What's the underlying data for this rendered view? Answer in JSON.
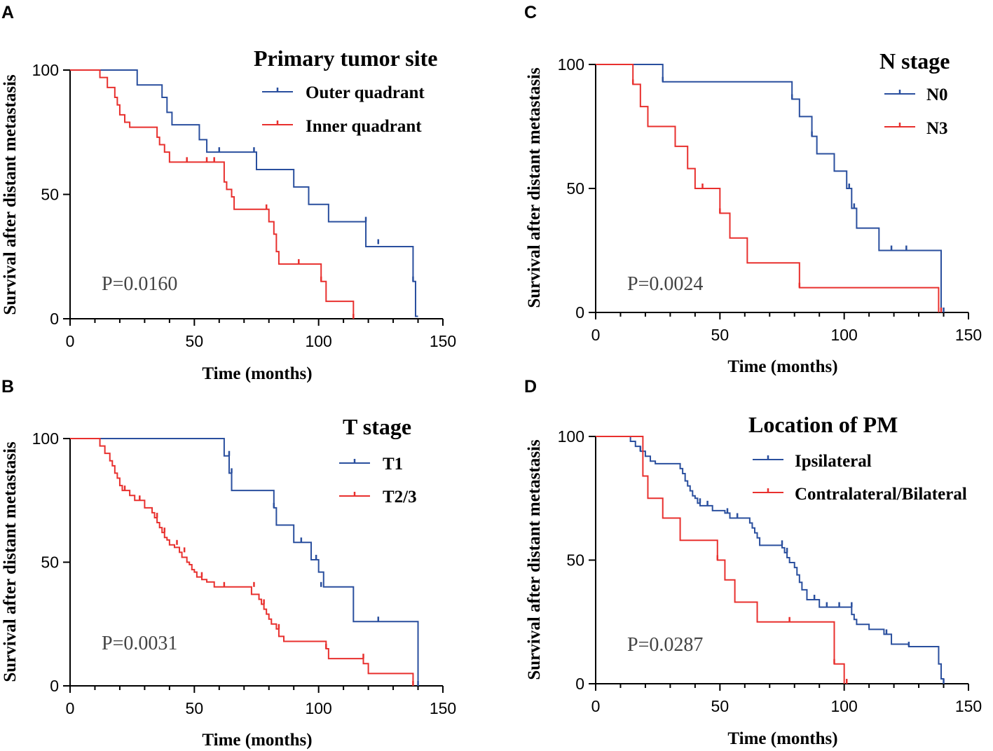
{
  "figure": {
    "x_axis_label": "Time (months)",
    "y_axis_label": "Survival after distant metastasis",
    "colors": {
      "blue": "#2a4f9e",
      "red": "#e8302e",
      "axis": "#000000"
    }
  },
  "chart_data": [
    {
      "panel_label": "A",
      "type": "line",
      "step": true,
      "legend_title": "Primary tumor site",
      "p_value": "P=0.0160",
      "xlabel": "Time (months)",
      "ylabel": "Survival after distant metastasis",
      "xlim": [
        0,
        150
      ],
      "ylim": [
        0,
        100
      ],
      "x_ticks": [
        0,
        50,
        100,
        150
      ],
      "y_ticks": [
        0,
        50,
        100
      ],
      "series": [
        {
          "name": "Outer quadrant",
          "color": "#2a4f9e",
          "x": [
            0,
            27,
            37,
            39,
            41,
            52,
            55,
            75,
            90,
            96,
            104,
            118,
            119,
            138,
            139,
            140
          ],
          "y": [
            100,
            94,
            89,
            83,
            78,
            72,
            67,
            60,
            53,
            46,
            39,
            39,
            29,
            15,
            1,
            1
          ],
          "censor": [
            [
              60,
              67
            ],
            [
              74,
              67
            ],
            [
              119,
              39
            ],
            [
              124,
              30
            ],
            [
              138,
              15
            ]
          ]
        },
        {
          "name": "Inner quadrant",
          "color": "#e8302e",
          "x": [
            0,
            12,
            15,
            18,
            19,
            20,
            22,
            24,
            35,
            36,
            38,
            40,
            43,
            62,
            63,
            65,
            66,
            80,
            82,
            83,
            84,
            101,
            103,
            114
          ],
          "y": [
            100,
            97,
            93,
            89,
            86,
            82,
            79,
            77,
            73,
            70,
            67,
            63,
            63,
            55,
            52,
            49,
            44,
            39,
            34,
            27,
            22,
            15,
            7,
            0
          ],
          "censor": [
            [
              47,
              63
            ],
            [
              55,
              63
            ],
            [
              58,
              63
            ],
            [
              79,
              44
            ],
            [
              92,
              22
            ],
            [
              101,
              15
            ],
            [
              114,
              0
            ]
          ]
        }
      ]
    },
    {
      "panel_label": "B",
      "type": "line",
      "step": true,
      "legend_title": "T stage",
      "p_value": "P=0.0031",
      "xlabel": "Time (months)",
      "ylabel": "Survival after distant metastasis",
      "xlim": [
        0,
        150
      ],
      "ylim": [
        0,
        100
      ],
      "x_ticks": [
        0,
        50,
        100,
        150
      ],
      "y_ticks": [
        0,
        50,
        100
      ],
      "series": [
        {
          "name": "T1",
          "color": "#2a4f9e",
          "x": [
            0,
            62,
            64,
            65,
            66,
            82,
            83,
            90,
            97,
            100,
            102,
            114,
            140
          ],
          "y": [
            100,
            93,
            86,
            79,
            79,
            72,
            65,
            58,
            51,
            46,
            40,
            26,
            0
          ],
          "censor": [
            [
              64,
              93
            ],
            [
              65,
              86
            ],
            [
              82,
              72
            ],
            [
              93,
              58
            ],
            [
              99,
              51
            ],
            [
              101,
              40
            ],
            [
              124,
              26
            ],
            [
              140,
              0
            ]
          ]
        },
        {
          "name": "T2/3",
          "color": "#e8302e",
          "x": [
            0,
            12,
            14,
            16,
            17,
            18,
            19,
            20,
            21,
            22,
            24,
            26,
            30,
            33,
            34,
            35,
            36,
            37,
            38,
            39,
            40,
            42,
            44,
            45,
            47,
            48,
            49,
            50,
            51,
            53,
            55,
            57,
            58,
            61,
            65,
            73,
            76,
            77,
            78,
            79,
            80,
            81,
            83,
            84,
            86,
            88,
            103,
            104,
            118,
            120,
            138
          ],
          "y": [
            100,
            97,
            94,
            91,
            89,
            86,
            84,
            81,
            79,
            79,
            77,
            75,
            72,
            70,
            68,
            66,
            64,
            62,
            60,
            59,
            57,
            56,
            54,
            52,
            50,
            49,
            47,
            46,
            44,
            43,
            42,
            42,
            40,
            40,
            40,
            37,
            35,
            33,
            31,
            29,
            27,
            25,
            23,
            20,
            18,
            18,
            15,
            11,
            9,
            5,
            0
          ],
          "censor": [
            [
              22,
              79
            ],
            [
              28,
              75
            ],
            [
              35,
              68
            ],
            [
              38,
              62
            ],
            [
              43,
              57
            ],
            [
              46,
              54
            ],
            [
              53,
              44
            ],
            [
              62,
              40
            ],
            [
              74,
              40
            ],
            [
              78,
              33
            ],
            [
              84,
              23
            ],
            [
              103,
              15
            ],
            [
              118,
              11
            ],
            [
              138,
              0
            ]
          ]
        }
      ]
    },
    {
      "panel_label": "C",
      "type": "line",
      "step": true,
      "legend_title": "N stage",
      "p_value": "P=0.0024",
      "xlabel": "Time (months)",
      "ylabel": "Survival after distant metastasis",
      "xlim": [
        0,
        150
      ],
      "ylim": [
        0,
        100
      ],
      "x_ticks": [
        0,
        50,
        100,
        150
      ],
      "y_ticks": [
        0,
        50,
        100
      ],
      "series": [
        {
          "name": "N0",
          "color": "#2a4f9e",
          "x": [
            0,
            27,
            79,
            82,
            87,
            89,
            96,
            101,
            103,
            105,
            114,
            139
          ],
          "y": [
            100,
            93,
            86,
            79,
            71,
            64,
            57,
            50,
            42,
            34,
            25,
            0
          ],
          "censor": [
            [
              27,
              93
            ],
            [
              79,
              86
            ],
            [
              87,
              71
            ],
            [
              102,
              50
            ],
            [
              104,
              42
            ],
            [
              119,
              25
            ],
            [
              125,
              25
            ],
            [
              140,
              0
            ]
          ]
        },
        {
          "name": "N3",
          "color": "#e8302e",
          "x": [
            0,
            15,
            18,
            21,
            32,
            37,
            40,
            50,
            54,
            61,
            82,
            138
          ],
          "y": [
            100,
            92,
            83,
            75,
            67,
            58,
            50,
            40,
            30,
            20,
            10,
            0
          ],
          "censor": [
            [
              15,
              92
            ],
            [
              43,
              50
            ],
            [
              50,
              40
            ],
            [
              82,
              10
            ],
            [
              139,
              0
            ]
          ]
        }
      ]
    },
    {
      "panel_label": "D",
      "type": "line",
      "step": true,
      "legend_title": "Location of PM",
      "p_value": "P=0.0287",
      "xlabel": "Time (months)",
      "ylabel": "Survival after distant metastasis",
      "xlim": [
        0,
        150
      ],
      "ylim": [
        0,
        100
      ],
      "x_ticks": [
        0,
        50,
        100,
        150
      ],
      "y_ticks": [
        0,
        50,
        100
      ],
      "series": [
        {
          "name": "Ipsilateral",
          "color": "#2a4f9e",
          "x": [
            0,
            14,
            16,
            18,
            20,
            22,
            24,
            34,
            35,
            36,
            37,
            38,
            39,
            40,
            41,
            42,
            44,
            47,
            52,
            54,
            62,
            63,
            64,
            65,
            66,
            75,
            76,
            77,
            78,
            80,
            81,
            82,
            83,
            85,
            90,
            103,
            104,
            105,
            110,
            116,
            119,
            126,
            138,
            139,
            140
          ],
          "y": [
            100,
            98,
            96,
            94,
            92,
            90,
            89,
            87,
            85,
            82,
            80,
            78,
            76,
            75,
            73,
            72,
            72,
            70,
            69,
            67,
            65,
            63,
            61,
            59,
            56,
            55,
            53,
            51,
            49,
            47,
            44,
            41,
            38,
            34,
            31,
            28,
            26,
            24,
            22,
            20,
            16,
            15,
            8,
            2,
            0
          ],
          "censor": [
            [
              18,
              94
            ],
            [
              42,
              73
            ],
            [
              45,
              72
            ],
            [
              53,
              69
            ],
            [
              57,
              67
            ],
            [
              75,
              56
            ],
            [
              77,
              53
            ],
            [
              88,
              34
            ],
            [
              93,
              31
            ],
            [
              98,
              31
            ],
            [
              103,
              31
            ],
            [
              117,
              20
            ],
            [
              126,
              15
            ],
            [
              140,
              0
            ]
          ]
        },
        {
          "name": "Contralateral/Bilateral",
          "color": "#e8302e",
          "x": [
            0,
            19,
            21,
            27,
            34,
            49,
            52,
            56,
            65,
            96,
            100
          ],
          "y": [
            100,
            84,
            75,
            67,
            58,
            50,
            42,
            33,
            25,
            8,
            0
          ],
          "censor": [
            [
              49,
              50
            ],
            [
              78,
              25
            ],
            [
              96,
              8
            ],
            [
              101,
              0
            ]
          ]
        }
      ]
    }
  ]
}
